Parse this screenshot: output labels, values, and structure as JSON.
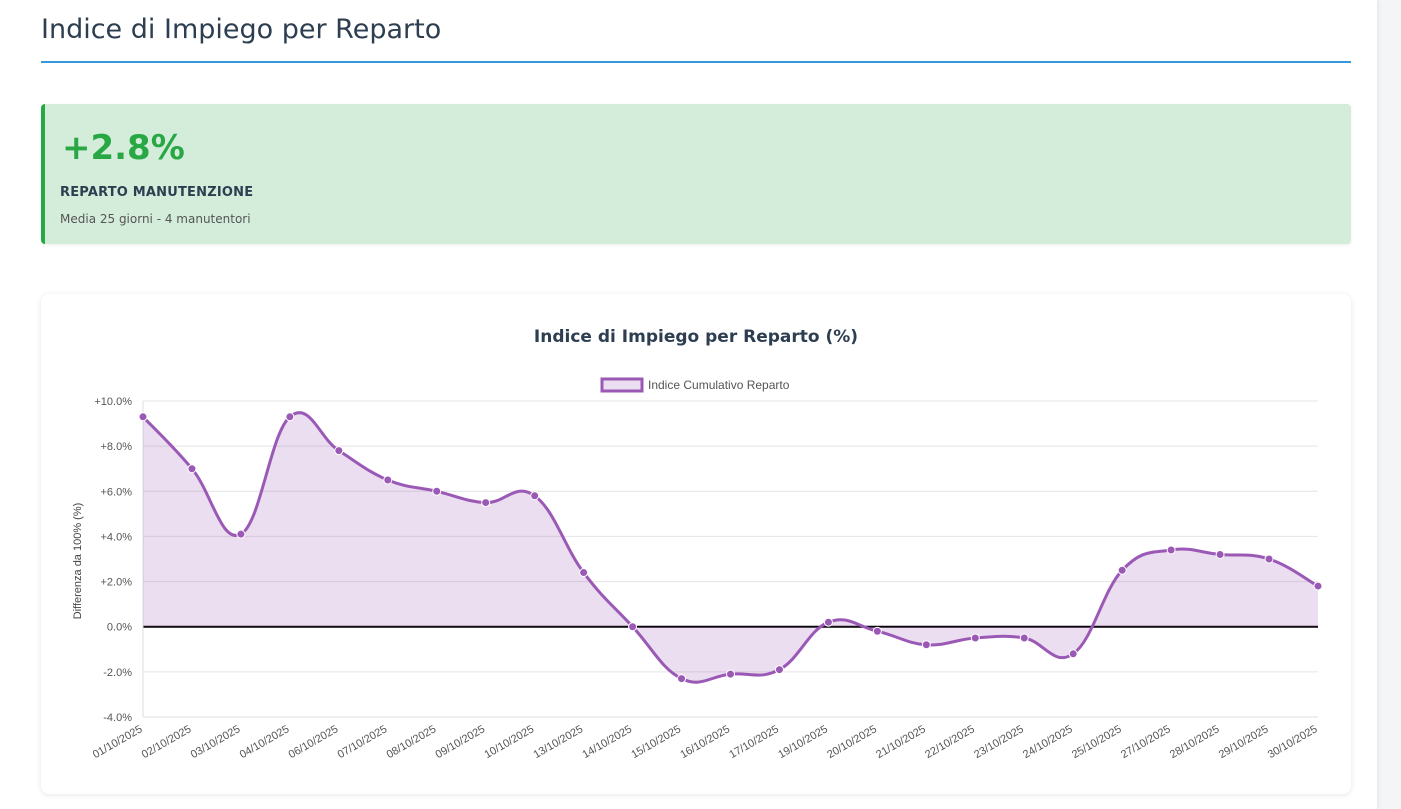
{
  "page": {
    "title": "Indice di Impiego per Reparto"
  },
  "kpi": {
    "value": "+2.8%",
    "label": "REPARTO MANUTENZIONE",
    "subtitle": "Media 25 giorni - 4 manutentori",
    "color": "#28a745",
    "background": "#d4edda"
  },
  "colors": {
    "title_rule": "#3498db",
    "series_line": "#9b59b6",
    "series_fill": "rgba(155, 89, 182, 0.2)"
  },
  "chart_data": {
    "type": "area",
    "title": "Indice di Impiego per Reparto (%)",
    "ylabel": "Differenza da 100% (%)",
    "xlabel": "",
    "ylim": [
      -4,
      10
    ],
    "y_ticks": [
      -4,
      -2,
      0,
      2,
      4,
      6,
      8,
      10
    ],
    "y_tick_labels": [
      "-4.0%",
      "-2.0%",
      "0.0%",
      "+2.0%",
      "+4.0%",
      "+6.0%",
      "+8.0%",
      "+10.0%"
    ],
    "grid": true,
    "legend_position": "top-center",
    "categories": [
      "01/10/2025",
      "02/10/2025",
      "03/10/2025",
      "04/10/2025",
      "06/10/2025",
      "07/10/2025",
      "08/10/2025",
      "09/10/2025",
      "10/10/2025",
      "13/10/2025",
      "14/10/2025",
      "15/10/2025",
      "16/10/2025",
      "17/10/2025",
      "19/10/2025",
      "20/10/2025",
      "21/10/2025",
      "22/10/2025",
      "23/10/2025",
      "24/10/2025",
      "25/10/2025",
      "27/10/2025",
      "28/10/2025",
      "29/10/2025",
      "30/10/2025"
    ],
    "series": [
      {
        "name": "Indice Cumulativo Reparto",
        "color": "#9b59b6",
        "values": [
          9.3,
          7.0,
          4.1,
          9.3,
          7.8,
          6.5,
          6.0,
          5.5,
          5.8,
          2.4,
          0.0,
          -2.3,
          -2.1,
          -1.9,
          0.2,
          -0.2,
          -0.8,
          -0.5,
          -0.5,
          -1.2,
          2.5,
          3.4,
          3.2,
          3.0,
          1.8
        ]
      }
    ]
  }
}
